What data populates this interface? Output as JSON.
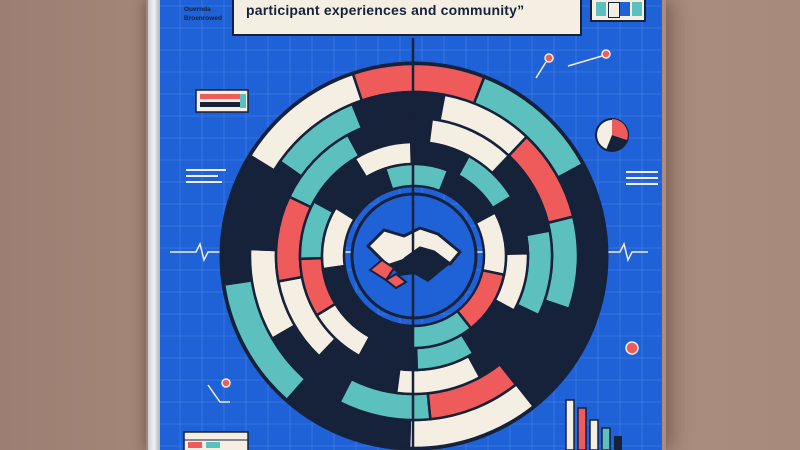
{
  "poster": {
    "title": "participant experiences and community”",
    "top_labels": [
      "Ouernda",
      "Broenrowed"
    ]
  },
  "icons": {
    "center": "handshake-icon",
    "pie": "pie-chart-icon",
    "bars": "bar-chart-icon"
  },
  "colors": {
    "background_blue": "#1f62d8",
    "navy": "#16213a",
    "teal": "#5cc1be",
    "coral": "#ef5a5a",
    "cream": "#f4efe2"
  }
}
